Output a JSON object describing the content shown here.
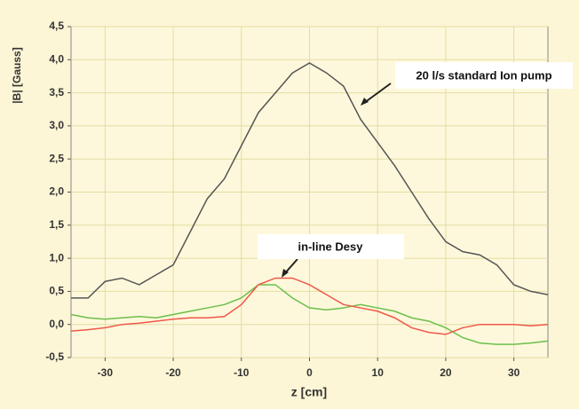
{
  "chart_data": {
    "type": "line",
    "xlabel": "z [cm]",
    "ylabel": "|B| [Gauss]",
    "annotations": [
      {
        "text": "20 l/s standard Ion pump"
      },
      {
        "text": "in-line Desy"
      }
    ],
    "x": [
      -35,
      -32.5,
      -30,
      -27.5,
      -25,
      -22.5,
      -20,
      -17.5,
      -15,
      -12.5,
      -10,
      -7.5,
      -5,
      -2.5,
      0,
      2.5,
      5,
      7.5,
      10,
      12.5,
      15,
      17.5,
      20,
      22.5,
      25,
      27.5,
      30,
      32.5,
      35
    ],
    "series": [
      {
        "color": "#555555",
        "values": [
          0.4,
          0.4,
          0.65,
          0.7,
          0.6,
          0.75,
          0.9,
          1.4,
          1.9,
          2.2,
          2.7,
          3.2,
          3.5,
          3.8,
          3.95,
          3.8,
          3.6,
          3.1,
          2.75,
          2.4,
          2.0,
          1.6,
          1.25,
          1.1,
          1.05,
          0.9,
          0.6,
          0.5,
          0.45
        ]
      },
      {
        "color": "#6cbf4a",
        "values": [
          0.15,
          0.1,
          0.08,
          0.1,
          0.12,
          0.1,
          0.15,
          0.2,
          0.25,
          0.3,
          0.4,
          0.6,
          0.6,
          0.4,
          0.25,
          0.22,
          0.25,
          0.3,
          0.25,
          0.2,
          0.1,
          0.05,
          -0.05,
          -0.2,
          -0.28,
          -0.3,
          -0.3,
          -0.28,
          -0.25
        ]
      },
      {
        "color": "#f0584a",
        "values": [
          -0.1,
          -0.08,
          -0.05,
          0,
          0.02,
          0.05,
          0.08,
          0.1,
          0.1,
          0.12,
          0.3,
          0.6,
          0.7,
          0.7,
          0.6,
          0.45,
          0.3,
          0.25,
          0.2,
          0.1,
          -0.05,
          -0.12,
          -0.15,
          -0.05,
          0,
          0,
          0,
          -0.02,
          0
        ]
      }
    ],
    "xlim": [
      -35,
      35
    ],
    "xticks": [
      -30,
      -20,
      -10,
      0,
      10,
      20,
      30
    ],
    "ylim": [
      -0.5,
      4.5
    ],
    "yticks": [
      {
        "value": -0.5,
        "label": "-0,5"
      },
      {
        "value": 0,
        "label": "0,0"
      },
      {
        "value": 0.5,
        "label": "0,5"
      },
      {
        "value": 1,
        "label": "1,0"
      },
      {
        "value": 1.5,
        "label": "1,5"
      },
      {
        "value": 2,
        "label": "2,0"
      },
      {
        "value": 2.5,
        "label": "2,5"
      },
      {
        "value": 3,
        "label": "3,0"
      },
      {
        "value": 3.5,
        "label": "3,5"
      },
      {
        "value": 4,
        "label": "4,0"
      },
      {
        "value": 4.5,
        "label": "4,5"
      }
    ],
    "grid": true
  }
}
